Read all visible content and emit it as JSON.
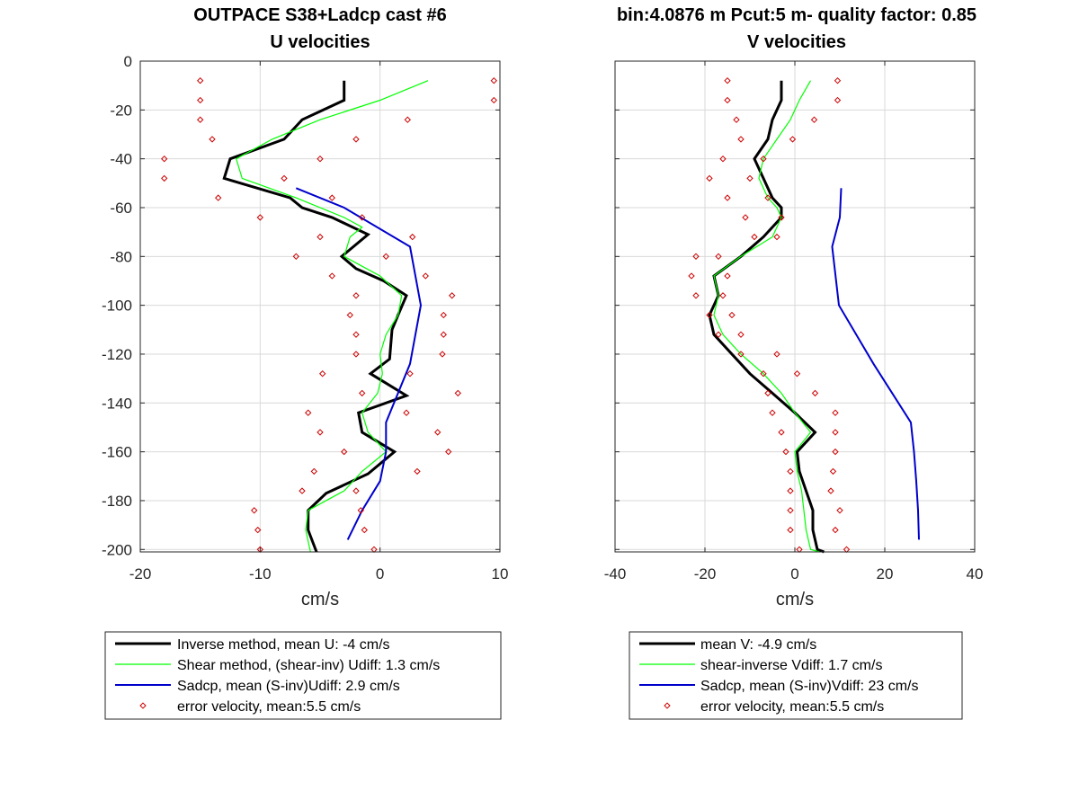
{
  "header": {
    "left_title": "OUTPACE S38+Ladcp cast #6",
    "left_subtitle": "U velocities",
    "right_title": "bin:4.0876 m  Pcut:5 m- quality factor:  0.85",
    "right_subtitle": "V velocities"
  },
  "colors": {
    "inverse": "#000000",
    "shear": "#00ff00",
    "sadcp": "#0000cc",
    "error": "#cc0000",
    "grid": "#d9d9d9",
    "axis": "#262626"
  },
  "legend_markers": {
    "line_widths": [
      3,
      1.2,
      2,
      0
    ],
    "error_marker_colour": "#cc0000",
    "error_marker_name": "diamond-marker-icon"
  },
  "chart_data": [
    {
      "type": "line",
      "title": "OUTPACE S38+Ladcp cast #6",
      "subtitle": "U velocities",
      "xlabel": "cm/s",
      "ylabel": "",
      "xlim": [
        -20,
        10
      ],
      "ylim": [
        -201,
        0
      ],
      "xticks": [
        -20,
        -10,
        0,
        10
      ],
      "yticks": [
        0,
        -20,
        -40,
        -60,
        -80,
        -100,
        -120,
        -140,
        -160,
        -180,
        -200
      ],
      "xtick_labels": [
        "-20",
        "-10",
        "0",
        "10"
      ],
      "ytick_labels": [
        "0",
        "-20",
        "-40",
        "-60",
        "-80",
        "-100",
        "-120",
        "-140",
        "-160",
        "-180",
        "-200"
      ],
      "grid": true,
      "legend_position": "below",
      "legend": [
        "Inverse method, mean U:  -4 cm/s",
        "Shear method, (shear-inv)  Udiff:  1.3 cm/s",
        "Sadcp, mean (S-inv)Udiff: 2.9 cm/s",
        "error velocity, mean:5.5 cm/s"
      ],
      "series": [
        {
          "key": "inverse",
          "style": "line",
          "x": [
            -3,
            -3,
            -6.5,
            -8,
            -12.5,
            -13,
            -7.5,
            -6.5,
            -4,
            -1,
            -3.2,
            -2,
            0.3,
            2.2,
            1.5,
            1,
            0.8,
            -0.8,
            2.2,
            -1.8,
            -1.5,
            1.2,
            -1,
            -4.5,
            -6,
            -6,
            -5.3
          ],
          "y": [
            -8,
            -16,
            -24,
            -32,
            -40,
            -48,
            -56,
            -60,
            -64,
            -71,
            -80,
            -85,
            -90,
            -96,
            -104,
            -110,
            -122,
            -128,
            -137,
            -144,
            -152,
            -160,
            -169,
            -177,
            -184,
            -192,
            -201
          ]
        },
        {
          "key": "shear",
          "style": "line",
          "x": [
            4,
            0,
            -5,
            -9,
            -12,
            -11.5,
            -7,
            -3,
            -1.5,
            -2.5,
            -3,
            -1.5,
            0,
            1.8,
            1.5,
            0.5,
            0,
            0.2,
            -0.2,
            -1.5,
            -1,
            0.5,
            -1.5,
            -3,
            -6,
            -6.2,
            -5.8
          ],
          "y": [
            -8,
            -16,
            -24,
            -32,
            -40,
            -48,
            -56,
            -64,
            -68,
            -72,
            -80,
            -84,
            -88,
            -96,
            -104,
            -112,
            -120,
            -128,
            -136,
            -144,
            -152,
            -160,
            -168,
            -176,
            -184,
            -192,
            -201
          ]
        },
        {
          "key": "sadcp",
          "style": "line",
          "x": [
            -7,
            -3,
            2.5,
            3.4,
            2.5,
            0.5,
            0.5,
            0,
            -1.5,
            -2.7
          ],
          "y": [
            -52,
            -60,
            -76,
            -100,
            -124,
            -148,
            -160,
            -172,
            -184,
            -196
          ]
        },
        {
          "key": "error",
          "style": "markers",
          "x": [
            -15,
            9.5,
            -15,
            9.5,
            -15,
            2.3,
            -14,
            -2,
            -18,
            -5,
            -18,
            -8,
            -13.5,
            -4,
            -10,
            -1.5,
            -5,
            2.7,
            -7,
            0.5,
            -4,
            3.8,
            -2,
            6,
            -2.5,
            5.3,
            -2,
            5.3,
            -2,
            5.2,
            -4.8,
            2.5,
            -1.5,
            6.5,
            -6,
            2.2,
            -5,
            4.8,
            -3,
            5.7,
            -5.5,
            3.1,
            -6.5,
            -2,
            -10.5,
            -1.6,
            -10.2,
            -1.3,
            -10,
            -0.5
          ],
          "y": [
            -8,
            -8,
            -16,
            -16,
            -24,
            -24,
            -32,
            -32,
            -40,
            -40,
            -48,
            -48,
            -56,
            -56,
            -64,
            -64,
            -72,
            -72,
            -80,
            -80,
            -88,
            -88,
            -96,
            -96,
            -104,
            -104,
            -112,
            -112,
            -120,
            -120,
            -128,
            -128,
            -136,
            -136,
            -144,
            -144,
            -152,
            -152,
            -160,
            -160,
            -168,
            -168,
            -176,
            -176,
            -184,
            -184,
            -192,
            -192,
            -200,
            -200
          ]
        }
      ]
    },
    {
      "type": "line",
      "title": "bin:4.0876 m  Pcut:5 m- quality factor:  0.85",
      "subtitle": "V velocities",
      "xlabel": "cm/s",
      "ylabel": "",
      "xlim": [
        -40,
        40
      ],
      "ylim": [
        -201,
        0
      ],
      "xticks": [
        -40,
        -20,
        0,
        20,
        40
      ],
      "yticks": [
        0,
        -20,
        -40,
        -60,
        -80,
        -100,
        -120,
        -140,
        -160,
        -180,
        -200
      ],
      "xtick_labels": [
        "-40",
        "-20",
        "0",
        "20",
        "40"
      ],
      "ytick_labels": [],
      "grid": true,
      "legend_position": "below",
      "legend": [
        "mean V:  -4.9 cm/s",
        "shear-inverse Vdiff:  1.7 cm/s",
        "Sadcp, mean (S-inv)Vdiff: 23 cm/s",
        "error velocity, mean:5.5 cm/s"
      ],
      "series": [
        {
          "key": "inverse",
          "style": "line",
          "x": [
            -3,
            -3,
            -5,
            -6,
            -9,
            -7,
            -5,
            -3,
            -3,
            -7,
            -12,
            -18,
            -17,
            -19,
            -18,
            -14,
            -10,
            -5,
            0,
            4.5,
            0.5,
            1,
            2.5,
            4,
            4,
            5,
            6.5
          ],
          "y": [
            -8,
            -16,
            -24,
            -32,
            -40,
            -48,
            -56,
            -60,
            -64,
            -72,
            -80,
            -88,
            -96,
            -104,
            -112,
            -120,
            -128,
            -136,
            -144,
            -152,
            -160,
            -168,
            -176,
            -184,
            -192,
            -200,
            -201
          ]
        },
        {
          "key": "shear",
          "style": "line",
          "x": [
            3.5,
            1,
            -1,
            -4,
            -7,
            -8,
            -6,
            -4,
            -3,
            -5,
            -12,
            -18,
            -17,
            -18,
            -16,
            -12,
            -7,
            -3,
            0,
            3.5,
            0,
            0.5,
            1.5,
            2,
            2.5,
            3.5,
            5.5
          ],
          "y": [
            -8,
            -16,
            -24,
            -32,
            -40,
            -48,
            -56,
            -60,
            -64,
            -72,
            -80,
            -88,
            -96,
            -104,
            -112,
            -120,
            -128,
            -136,
            -144,
            -152,
            -160,
            -168,
            -176,
            -184,
            -192,
            -200,
            -201
          ]
        },
        {
          "key": "sadcp",
          "style": "line",
          "x": [
            10.3,
            10,
            8.3,
            9.8,
            17.5,
            25.8,
            26.5,
            27,
            27.4,
            27.6
          ],
          "y": [
            -52,
            -64,
            -76,
            -100,
            -124,
            -148,
            -160,
            -172,
            -184,
            -196
          ]
        },
        {
          "key": "error",
          "style": "markers",
          "x": [
            -15,
            9.5,
            -15,
            9.5,
            -13,
            4.3,
            -12,
            -0.5,
            -16,
            -7,
            -19,
            -10,
            -15,
            -6,
            -11,
            -3,
            -9,
            -4,
            -22,
            -17,
            -23,
            -15,
            -22,
            -16,
            -19,
            -14,
            -17,
            -12,
            -12,
            -4,
            -7,
            0.5,
            -6,
            4.5,
            -5,
            9,
            -3,
            9,
            -2,
            9,
            -1,
            8.5,
            -1,
            8,
            -1,
            10,
            -1,
            9,
            1,
            11.5
          ],
          "y": [
            -8,
            -8,
            -16,
            -16,
            -24,
            -24,
            -32,
            -32,
            -40,
            -40,
            -48,
            -48,
            -56,
            -56,
            -64,
            -64,
            -72,
            -72,
            -80,
            -80,
            -88,
            -88,
            -96,
            -96,
            -104,
            -104,
            -112,
            -112,
            -120,
            -120,
            -128,
            -128,
            -136,
            -136,
            -144,
            -144,
            -152,
            -152,
            -160,
            -160,
            -168,
            -168,
            -176,
            -176,
            -184,
            -184,
            -192,
            -192,
            -200,
            -200
          ]
        }
      ]
    }
  ]
}
